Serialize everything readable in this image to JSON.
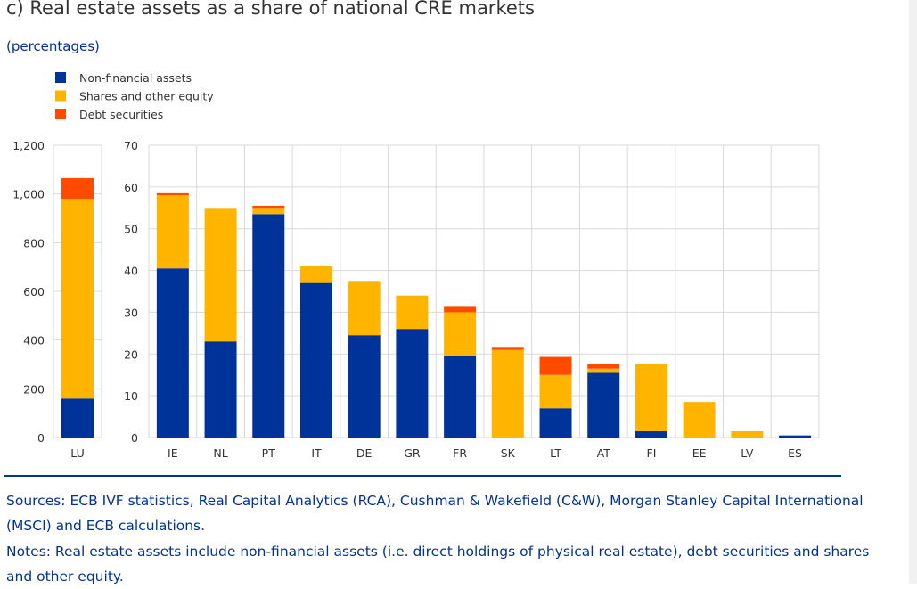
{
  "chart_data": {
    "type": "bar",
    "stacked": true,
    "title": "c) Real estate assets as a share of national CRE markets",
    "subtitle": "(percentages)",
    "legend": {
      "placement": "top-left",
      "entries": [
        "Non-financial assets",
        "Shares and other equity",
        "Debt securities"
      ]
    },
    "colors": {
      "Non-financial assets": "#003399",
      "Shares and other equity": "#ffb400",
      "Debt securities": "#ff4b00"
    },
    "grid": true,
    "panels": [
      {
        "axis": "left",
        "ylim": [
          0,
          1200
        ],
        "yticks": [
          0,
          200,
          400,
          600,
          800,
          1000,
          1200
        ],
        "ytick_labels": [
          "0",
          "200",
          "400",
          "600",
          "800",
          "1,000",
          "1,200"
        ],
        "categories": [
          "LU"
        ],
        "series": [
          {
            "name": "Non-financial assets",
            "values": [
              160
            ]
          },
          {
            "name": "Shares and other equity",
            "values": [
              820
            ]
          },
          {
            "name": "Debt securities",
            "values": [
              85
            ]
          }
        ]
      },
      {
        "axis": "right",
        "ylim": [
          0,
          70
        ],
        "yticks": [
          0,
          10,
          20,
          30,
          40,
          50,
          60,
          70
        ],
        "ytick_labels": [
          "0",
          "10",
          "20",
          "30",
          "40",
          "50",
          "60",
          "70"
        ],
        "categories": [
          "IE",
          "NL",
          "PT",
          "IT",
          "DE",
          "GR",
          "FR",
          "SK",
          "LT",
          "AT",
          "FI",
          "EE",
          "LV",
          "ES"
        ],
        "series": [
          {
            "name": "Non-financial assets",
            "values": [
              40.5,
              23,
              53.5,
              37,
              24.5,
              26,
              19.5,
              0,
              7,
              15.5,
              1.5,
              0,
              0,
              0.5
            ]
          },
          {
            "name": "Shares and other equity",
            "values": [
              17.5,
              32,
              1.5,
              4,
              13,
              8,
              10.5,
              21,
              8,
              1,
              16,
              8.5,
              1.5,
              0
            ]
          },
          {
            "name": "Debt securities",
            "values": [
              0.5,
              0,
              0.5,
              0,
              0,
              0,
              1.5,
              0.7,
              4.3,
              1,
              0,
              0,
              0,
              0
            ]
          }
        ]
      }
    ]
  },
  "footer": {
    "sources": "Sources: ECB IVF statistics, Real Capital Analytics (RCA), Cushman & Wakefield (C&W), Morgan Stanley Capital International (MSCI) and ECB calculations.",
    "notes": "Notes: Real estate assets include non-financial assets (i.e. direct holdings of physical real estate), debt securities and shares and other equity."
  }
}
